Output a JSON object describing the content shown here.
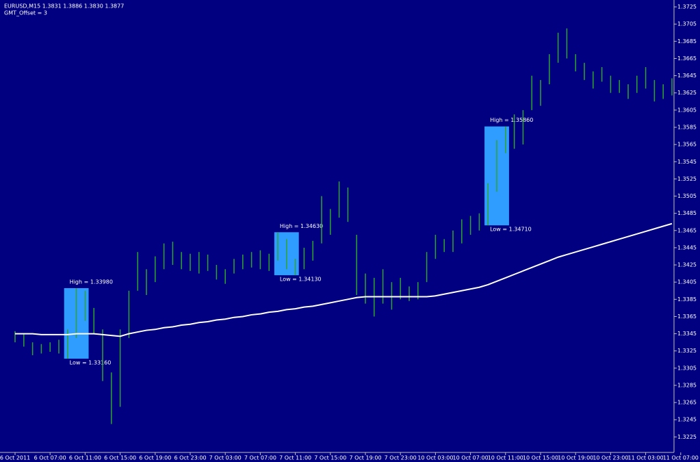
{
  "chart_data": {
    "type": "hilo",
    "header": [
      "EURUSD,M15  1.3831 1.3886 1.3830 1.3877",
      "GMT_Offset = 3"
    ],
    "categories": [
      "6 Oct 2011",
      null,
      null,
      null,
      "6 Oct 07:00",
      null,
      null,
      null,
      "6 Oct 11:00",
      null,
      null,
      null,
      "6 Oct 15:00",
      null,
      null,
      null,
      "6 Oct 19:00",
      null,
      null,
      null,
      "6 Oct 23:00",
      null,
      null,
      null,
      "7 Oct 03:00",
      null,
      null,
      null,
      "7 Oct 07:00",
      null,
      null,
      null,
      "7 Oct 11:00",
      null,
      null,
      null,
      "7 Oct 15:00",
      null,
      null,
      null,
      "7 Oct 19:00",
      null,
      null,
      null,
      "7 Oct 23:00",
      null,
      null,
      null,
      "10 Oct 03:00",
      null,
      null,
      null,
      "10 Oct 07:00",
      null,
      null,
      null,
      "10 Oct 11:00",
      null,
      null,
      null,
      "10 Oct 15:00",
      null,
      null,
      null,
      "10 Oct 19:00",
      null,
      null,
      null,
      "10 Oct 23:00",
      null,
      null,
      null,
      "11 Oct 03:00",
      null,
      null,
      null,
      "11 Oct 07:00"
    ],
    "high": [
      1.3348,
      1.3345,
      1.3335,
      1.3333,
      1.3335,
      1.3338,
      1.335,
      1.3398,
      1.3395,
      1.3375,
      1.335,
      1.33,
      1.335,
      1.3395,
      1.344,
      1.342,
      1.3435,
      1.345,
      1.3452,
      1.344,
      1.3438,
      1.344,
      1.3437,
      1.3425,
      1.342,
      1.3432,
      1.3437,
      1.344,
      1.3442,
      1.3438,
      1.3463,
      1.3455,
      1.3432,
      1.3445,
      1.3453,
      1.3505,
      1.349,
      1.3522,
      1.3515,
      1.346,
      1.3415,
      1.341,
      1.342,
      1.3405,
      1.341,
      1.34,
      1.3405,
      1.344,
      1.346,
      1.3455,
      1.3465,
      1.3478,
      1.3482,
      1.3485,
      1.352,
      1.357,
      1.3586,
      1.36,
      1.3605,
      1.3645,
      1.364,
      1.367,
      1.3695,
      1.37,
      1.367,
      1.366,
      1.365,
      1.3655,
      1.3645,
      1.364,
      1.3635,
      1.3645,
      1.3655,
      1.364,
      1.3635,
      1.3642,
      null
    ],
    "low": [
      1.3335,
      1.333,
      1.332,
      1.3322,
      1.3324,
      1.3322,
      1.3316,
      1.334,
      1.336,
      1.3345,
      1.329,
      1.324,
      1.326,
      1.334,
      1.3395,
      1.339,
      1.3405,
      1.342,
      1.3425,
      1.342,
      1.3418,
      1.3415,
      1.3418,
      1.3408,
      1.3403,
      1.3415,
      1.342,
      1.3422,
      1.342,
      1.3418,
      1.343,
      1.342,
      1.3413,
      1.342,
      1.343,
      1.345,
      1.346,
      1.348,
      1.3475,
      1.339,
      1.338,
      1.3365,
      1.338,
      1.3373,
      1.3385,
      1.3383,
      1.3385,
      1.3405,
      1.3432,
      1.344,
      1.344,
      1.345,
      1.346,
      1.3465,
      1.3471,
      1.351,
      1.3555,
      1.356,
      1.3565,
      1.3605,
      1.361,
      1.3635,
      1.366,
      1.3665,
      1.365,
      1.364,
      1.363,
      1.3638,
      1.3625,
      1.3625,
      1.3618,
      1.3625,
      1.363,
      1.3615,
      1.3618,
      1.3622,
      null
    ],
    "moving_average": [
      1.3345,
      1.3345,
      1.3345,
      1.3344,
      1.3344,
      1.3344,
      1.3344,
      1.3345,
      1.3345,
      1.3345,
      1.3344,
      1.3343,
      1.3342,
      1.3345,
      1.3347,
      1.3349,
      1.335,
      1.3352,
      1.3353,
      1.3355,
      1.3356,
      1.3358,
      1.3359,
      1.3361,
      1.3362,
      1.3364,
      1.3365,
      1.3367,
      1.3368,
      1.337,
      1.3371,
      1.3373,
      1.3374,
      1.3376,
      1.3377,
      1.3379,
      1.3381,
      1.3383,
      1.3385,
      1.3387,
      1.3388,
      1.3388,
      1.3388,
      1.3388,
      1.3388,
      1.3388,
      1.3388,
      1.3388,
      1.3389,
      1.3391,
      1.3393,
      1.3395,
      1.3397,
      1.3399,
      1.3402,
      1.3406,
      1.341,
      1.3414,
      1.3418,
      1.3422,
      1.3426,
      1.343,
      1.3434,
      1.3437,
      1.344,
      1.3443,
      1.3446,
      1.3449,
      1.3452,
      1.3455,
      1.3458,
      1.3461,
      1.3464,
      1.3467,
      1.347,
      1.3473,
      null
    ],
    "color": "#2fa52f",
    "ma_color": "#ffffff",
    "box_color": "#2f9cff",
    "boxes": [
      {
        "high": 1.3398,
        "low": 1.3316,
        "value_labels": [
          "High = 1.33980",
          "Low = 1.33160"
        ]
      },
      {
        "high": 1.3463,
        "low": 1.3413,
        "value_labels": [
          "High = 1.34630",
          "Low = 1.34130"
        ]
      },
      {
        "high": 1.3586,
        "low": 1.3471,
        "value_labels": [
          "High = 1.35860",
          "Low = 1.34710"
        ]
      }
    ],
    "ylim": [
      1.3207,
      1.3733
    ],
    "yticks": [
      1.3225,
      1.3245,
      1.3265,
      1.3285,
      1.3305,
      1.3325,
      1.3345,
      1.3365,
      1.3385,
      1.3405,
      1.3425,
      1.3445,
      1.3465,
      1.3485,
      1.3505,
      1.3525,
      1.3545,
      1.3565,
      1.3585,
      1.3605,
      1.3625,
      1.3645,
      1.3665,
      1.3685,
      1.3705,
      1.3725
    ]
  }
}
